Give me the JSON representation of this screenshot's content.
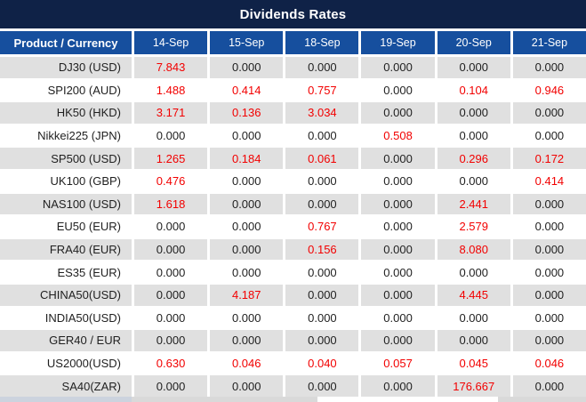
{
  "title": "Dividends Rates",
  "table": {
    "columns": [
      "Product / Currency",
      "14-Sep",
      "15-Sep",
      "18-Sep",
      "19-Sep",
      "20-Sep",
      "21-Sep"
    ],
    "rows": [
      {
        "product": "DJ30 (USD)",
        "values": [
          "7.843",
          "0.000",
          "0.000",
          "0.000",
          "0.000",
          "0.000"
        ]
      },
      {
        "product": "SPI200 (AUD)",
        "values": [
          "1.488",
          "0.414",
          "0.757",
          "0.000",
          "0.104",
          "0.946"
        ]
      },
      {
        "product": "HK50 (HKD)",
        "values": [
          "3.171",
          "0.136",
          "3.034",
          "0.000",
          "0.000",
          "0.000"
        ]
      },
      {
        "product": "Nikkei225 (JPN)",
        "values": [
          "0.000",
          "0.000",
          "0.000",
          "0.508",
          "0.000",
          "0.000"
        ]
      },
      {
        "product": "SP500 (USD)",
        "values": [
          "1.265",
          "0.184",
          "0.061",
          "0.000",
          "0.296",
          "0.172"
        ]
      },
      {
        "product": "UK100 (GBP)",
        "values": [
          "0.476",
          "0.000",
          "0.000",
          "0.000",
          "0.000",
          "0.414"
        ]
      },
      {
        "product": "NAS100 (USD)",
        "values": [
          "1.618",
          "0.000",
          "0.000",
          "0.000",
          "2.441",
          "0.000"
        ]
      },
      {
        "product": "EU50 (EUR)",
        "values": [
          "0.000",
          "0.000",
          "0.767",
          "0.000",
          "2.579",
          "0.000"
        ]
      },
      {
        "product": "FRA40 (EUR)",
        "values": [
          "0.000",
          "0.000",
          "0.156",
          "0.000",
          "8.080",
          "0.000"
        ]
      },
      {
        "product": "ES35 (EUR)",
        "values": [
          "0.000",
          "0.000",
          "0.000",
          "0.000",
          "0.000",
          "0.000"
        ]
      },
      {
        "product": "CHINA50(USD)",
        "values": [
          "0.000",
          "4.187",
          "0.000",
          "0.000",
          "4.445",
          "0.000"
        ]
      },
      {
        "product": "INDIA50(USD)",
        "values": [
          "0.000",
          "0.000",
          "0.000",
          "0.000",
          "0.000",
          "0.000"
        ]
      },
      {
        "product": "GER40 / EUR",
        "values": [
          "0.000",
          "0.000",
          "0.000",
          "0.000",
          "0.000",
          "0.000"
        ]
      },
      {
        "product": "US2000(USD)",
        "values": [
          "0.630",
          "0.046",
          "0.040",
          "0.057",
          "0.045",
          "0.046"
        ]
      },
      {
        "product": "SA40(ZAR)",
        "values": [
          "0.000",
          "0.000",
          "0.000",
          "0.000",
          "176.667",
          "0.000"
        ]
      }
    ]
  },
  "chart_data": {
    "type": "table",
    "title": "Dividends Rates",
    "categories": [
      "14-Sep",
      "15-Sep",
      "18-Sep",
      "19-Sep",
      "20-Sep",
      "21-Sep"
    ],
    "series": [
      {
        "name": "DJ30 (USD)",
        "values": [
          7.843,
          0.0,
          0.0,
          0.0,
          0.0,
          0.0
        ]
      },
      {
        "name": "SPI200 (AUD)",
        "values": [
          1.488,
          0.414,
          0.757,
          0.0,
          0.104,
          0.946
        ]
      },
      {
        "name": "HK50 (HKD)",
        "values": [
          3.171,
          0.136,
          3.034,
          0.0,
          0.0,
          0.0
        ]
      },
      {
        "name": "Nikkei225 (JPN)",
        "values": [
          0.0,
          0.0,
          0.0,
          0.508,
          0.0,
          0.0
        ]
      },
      {
        "name": "SP500 (USD)",
        "values": [
          1.265,
          0.184,
          0.061,
          0.0,
          0.296,
          0.172
        ]
      },
      {
        "name": "UK100 (GBP)",
        "values": [
          0.476,
          0.0,
          0.0,
          0.0,
          0.0,
          0.414
        ]
      },
      {
        "name": "NAS100 (USD)",
        "values": [
          1.618,
          0.0,
          0.0,
          0.0,
          2.441,
          0.0
        ]
      },
      {
        "name": "EU50 (EUR)",
        "values": [
          0.0,
          0.0,
          0.767,
          0.0,
          2.579,
          0.0
        ]
      },
      {
        "name": "FRA40 (EUR)",
        "values": [
          0.0,
          0.0,
          0.156,
          0.0,
          8.08,
          0.0
        ]
      },
      {
        "name": "ES35 (EUR)",
        "values": [
          0.0,
          0.0,
          0.0,
          0.0,
          0.0,
          0.0
        ]
      },
      {
        "name": "CHINA50(USD)",
        "values": [
          0.0,
          4.187,
          0.0,
          0.0,
          4.445,
          0.0
        ]
      },
      {
        "name": "INDIA50(USD)",
        "values": [
          0.0,
          0.0,
          0.0,
          0.0,
          0.0,
          0.0
        ]
      },
      {
        "name": "GER40 / EUR",
        "values": [
          0.0,
          0.0,
          0.0,
          0.0,
          0.0,
          0.0
        ]
      },
      {
        "name": "US2000(USD)",
        "values": [
          0.63,
          0.046,
          0.04,
          0.057,
          0.045,
          0.046
        ]
      },
      {
        "name": "SA40(ZAR)",
        "values": [
          0.0,
          0.0,
          0.0,
          0.0,
          176.667,
          0.0
        ]
      }
    ],
    "notes": "Non-zero values rendered in red, zero values in black"
  },
  "colors": {
    "title_bar_bg": "#0f2247",
    "header_bg": "#164f9e",
    "header_text": "#ffffff",
    "row_alt_bg": "#e0e0e0",
    "row_bg": "#ffffff",
    "value_zero_text": "#1f1f1f",
    "value_nonzero_text": "#f20000"
  }
}
